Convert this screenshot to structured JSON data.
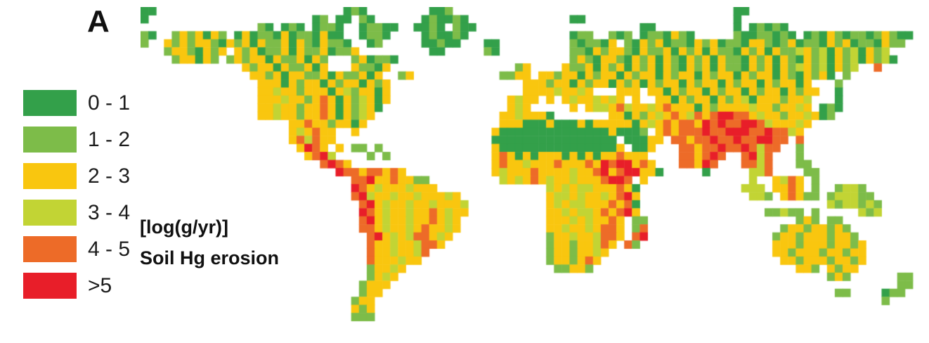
{
  "panel_label": "A",
  "legend": {
    "entries": [
      {
        "label": "0 - 1",
        "color": "#33a04a",
        "class": "0"
      },
      {
        "label": "1 - 2",
        "color": "#7dbc49",
        "class": "1"
      },
      {
        "label": "2 - 3",
        "color": "#f9c60f",
        "class": "2"
      },
      {
        "label": "3 - 4",
        "color": "#c2d434",
        "class": "3"
      },
      {
        "label": "4 - 5",
        "color": "#ed6b28",
        "class": "4"
      },
      {
        "label": ">5",
        "color": "#e81e29",
        "class": "5"
      }
    ],
    "unit_label": "[log(g/yr)]",
    "title": "Soil Hg erosion"
  },
  "map": {
    "cols": 100,
    "rows": 40,
    "palette": {
      "0": "#33a04a",
      "1": "#7dbc49",
      "2": "#f9c60f",
      "3": "#c2d434",
      "4": "#ed6b28",
      "5": "#e81e29"
    },
    "grid": [
      [
        [
          0,
          "00"
        ],
        [
          26,
          "010"
        ],
        [
          37,
          "001"
        ],
        [
          76,
          "00"
        ]
      ],
      [
        [
          0,
          "0"
        ],
        [
          22,
          "01"
        ],
        [
          25,
          "00"
        ],
        [
          28,
          "10"
        ],
        [
          36,
          "010010"
        ],
        [
          55,
          "00"
        ],
        [
          76,
          "0"
        ]
      ],
      [
        [
          15,
          "10"
        ],
        [
          18,
          "010"
        ],
        [
          22,
          "0110"
        ],
        [
          28,
          "01100"
        ],
        [
          35,
          "0010"
        ],
        [
          40,
          "100"
        ],
        [
          64,
          "00"
        ],
        [
          76,
          "0"
        ],
        [
          78,
          "01010"
        ]
      ],
      [
        [
          0,
          "10"
        ],
        [
          4,
          "1212021"
        ],
        [
          12,
          "02011020110200"
        ],
        [
          28,
          "0110"
        ],
        [
          36,
          "010010"
        ],
        [
          55,
          "011"
        ],
        [
          60,
          "101"
        ],
        [
          64,
          "0110210"
        ],
        [
          76,
          "10011010"
        ],
        [
          85,
          "0102101101210"
        ],
        [
          98,
          "0"
        ]
      ],
      [
        [
          0,
          "1"
        ],
        [
          3,
          "212122102"
        ],
        [
          12,
          "120211202102110"
        ],
        [
          29,
          "01"
        ],
        [
          36,
          "00100"
        ],
        [
          44,
          "00"
        ],
        [
          55,
          "101102"
        ],
        [
          62,
          "10212011021201102210120110212011021"
        ],
        [
          97,
          "1"
        ]
      ],
      [
        [
          3,
          "12210212"
        ],
        [
          12,
          "2120112021120112"
        ],
        [
          37,
          "00"
        ],
        [
          44,
          "10"
        ],
        [
          55,
          "110212"
        ],
        [
          61,
          "21021120212021102120211321302130213"
        ]
      ],
      [
        [
          4,
          "122021"
        ],
        [
          11,
          "1212202112021"
        ],
        [
          27,
          "120110"
        ],
        [
          55,
          "12102"
        ],
        [
          60,
          "2102120210212021102120210213021302130"
        ]
      ],
      [
        [
          13,
          "21220211202"
        ],
        [
          27,
          "21102"
        ],
        [
          48,
          "12"
        ],
        [
          54,
          "21120"
        ],
        [
          59,
          "212021202102120211021202132130213"
        ],
        [
          94,
          "4"
        ]
      ],
      [
        [
          14,
          "22120221120211202"
        ],
        [
          33,
          "12"
        ],
        [
          46,
          "1122"
        ],
        [
          51,
          "22122021220212202122021220212202102120"
        ],
        [
          90,
          "1"
        ]
      ],
      [
        [
          15,
          "22202122021220212"
        ],
        [
          49,
          "2221220212202120212202122021220212202"
        ],
        [
          89,
          "1"
        ]
      ],
      [
        [
          15,
          "22322122202312202"
        ],
        [
          49,
          "222232232"
        ],
        [
          61,
          "222"
        ],
        [
          65,
          "220212202122021"
        ],
        [
          80,
          "2202122"
        ],
        [
          89,
          "0"
        ]
      ],
      [
        [
          15,
          "22232212420213202"
        ],
        [
          47,
          "2322"
        ],
        [
          52,
          "2"
        ],
        [
          54,
          "232"
        ],
        [
          57,
          "23232"
        ],
        [
          63,
          "2"
        ],
        [
          66,
          "22021220212302"
        ],
        [
          80,
          "221223"
        ],
        [
          89,
          "0"
        ]
      ],
      [
        [
          15,
          "2232212242021320"
        ],
        [
          47,
          "232"
        ],
        [
          55,
          "2"
        ],
        [
          57,
          "2332432"
        ],
        [
          64,
          "23242"
        ],
        [
          69,
          "2202122"
        ],
        [
          76,
          "2232212232"
        ],
        [
          87,
          "010"
        ]
      ],
      [
        [
          15,
          "223221224202132"
        ],
        [
          46,
          "2232220"
        ],
        [
          60,
          "22021"
        ],
        [
          65,
          "23242"
        ],
        [
          70,
          "342"
        ],
        [
          73,
          "45544232212232"
        ],
        [
          87,
          "01"
        ]
      ],
      [
        [
          19,
          "2242212202"
        ],
        [
          46,
          "222000200020222"
        ],
        [
          61,
          "220"
        ],
        [
          64,
          "23242"
        ],
        [
          69,
          "442"
        ],
        [
          72,
          "5454455"
        ],
        [
          79,
          "4322232"
        ]
      ],
      [
        [
          19,
          "232422"
        ],
        [
          27,
          "2"
        ],
        [
          45,
          "2000000000000002"
        ],
        [
          61,
          "0001"
        ],
        [
          66,
          "242"
        ],
        [
          69,
          "44454455"
        ],
        [
          77,
          "54454432"
        ]
      ],
      [
        [
          19,
          "243422"
        ],
        [
          45,
          "0000000000000000"
        ],
        [
          62,
          "00022"
        ],
        [
          68,
          "44244544"
        ],
        [
          76,
          "5445544"
        ],
        [
          84,
          "4"
        ]
      ],
      [
        [
          20,
          "2542"
        ],
        [
          25,
          "2"
        ],
        [
          27,
          "11"
        ],
        [
          30,
          "1"
        ],
        [
          45,
          "20000000000000002"
        ],
        [
          63,
          "002"
        ],
        [
          69,
          "4424454"
        ],
        [
          76,
          "454344"
        ],
        [
          84,
          "1"
        ]
      ],
      [
        [
          21,
          "2453"
        ],
        [
          29,
          "1"
        ],
        [
          31,
          "1"
        ],
        [
          45,
          "242020222020202242"
        ],
        [
          63,
          "22"
        ],
        [
          69,
          "442454"
        ],
        [
          77,
          "4534"
        ],
        [
          84,
          "1"
        ]
      ],
      [
        [
          23,
          "4542"
        ],
        [
          45,
          "2422322242224254552"
        ],
        [
          64,
          "42"
        ],
        [
          69,
          "44254"
        ],
        [
          77,
          "4434"
        ],
        [
          84,
          "11"
        ]
      ],
      [
        [
          25,
          "544244242"
        ],
        [
          45,
          "23222422"
        ],
        [
          53,
          "22322452455"
        ],
        [
          64,
          "220"
        ],
        [
          72,
          "0"
        ],
        [
          78,
          "334"
        ],
        [
          85,
          "11"
        ]
      ],
      [
        [
          27,
          "4452242211"
        ],
        [
          46,
          "3232423"
        ],
        [
          53,
          "2232224554"
        ],
        [
          64,
          "2"
        ],
        [
          78,
          "3"
        ],
        [
          81,
          "2342"
        ],
        [
          86,
          "1"
        ]
      ],
      [
        [
          27,
          "54232223222"
        ],
        [
          52,
          "323233222420"
        ],
        [
          77,
          "333"
        ],
        [
          81,
          "2242"
        ],
        [
          86,
          "1"
        ],
        [
          89,
          "1331"
        ]
      ],
      [
        [
          27,
          "45322322322232"
        ],
        [
          52,
          "233232232452"
        ],
        [
          78,
          "331"
        ],
        [
          82,
          "24211"
        ],
        [
          88,
          "133311"
        ]
      ],
      [
        [
          28,
          "45232232232223"
        ],
        [
          52,
          "232332224240"
        ],
        [
          88,
          "3133131"
        ]
      ],
      [
        [
          28,
          "54232232242322"
        ],
        [
          52,
          "223233242452"
        ],
        [
          80,
          "11311"
        ],
        [
          86,
          "1"
        ],
        [
          92,
          "313"
        ]
      ],
      [
        [
          28,
          "4523223224232"
        ],
        [
          52,
          "2223232242"
        ],
        [
          63,
          "11"
        ],
        [
          84,
          "121"
        ],
        [
          88,
          "11"
        ]
      ],
      [
        [
          28,
          "4423223242232"
        ],
        [
          52,
          "2232232442"
        ],
        [
          63,
          "14"
        ],
        [
          82,
          "122122121"
        ]
      ],
      [
        [
          29,
          "45232344232"
        ],
        [
          52,
          "1223223442"
        ],
        [
          63,
          "45"
        ],
        [
          81,
          "12212221221"
        ]
      ],
      [
        [
          29,
          "4223223442"
        ],
        [
          52,
          "122122342"
        ],
        [
          62,
          "41"
        ],
        [
          81,
          "222122212212"
        ]
      ],
      [
        [
          29,
          "42232234"
        ],
        [
          52,
          "12212232"
        ],
        [
          81,
          "221222122122"
        ]
      ],
      [
        [
          29,
          "4222322"
        ],
        [
          52,
          "1221242"
        ],
        [
          82,
          "22122212212"
        ]
      ],
      [
        [
          29,
          "12232"
        ],
        [
          53,
          "11221"
        ],
        [
          84,
          "221"
        ],
        [
          88,
          "2122"
        ]
      ],
      [
        [
          29,
          "1232"
        ],
        [
          88,
          "121"
        ],
        [
          97,
          "11"
        ]
      ],
      [
        [
          28,
          "1222"
        ],
        [
          97,
          "11"
        ]
      ],
      [
        [
          28,
          "122"
        ],
        [
          89,
          "11"
        ],
        [
          95,
          "011"
        ]
      ],
      [
        [
          27,
          "122"
        ],
        [
          95,
          "1"
        ]
      ],
      [
        [
          27,
          "212"
        ]
      ],
      [
        [
          27,
          "111"
        ]
      ],
      []
    ]
  }
}
